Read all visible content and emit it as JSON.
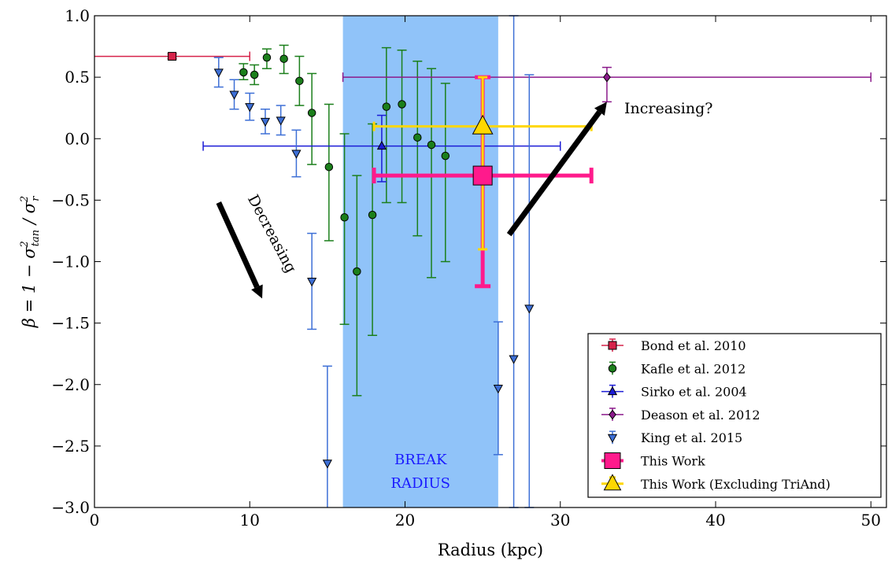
{
  "chart_data": {
    "type": "scatter",
    "xlabel": "Radius (kpc)",
    "ylabel_parts": [
      "β = 1 − σ",
      "2",
      "tan",
      " / σ",
      "2",
      "r"
    ],
    "xlim": [
      0,
      51
    ],
    "ylim": [
      -3.0,
      1.0
    ],
    "x_ticks": [
      0,
      10,
      20,
      30,
      40,
      50
    ],
    "y_ticks": [
      1.0,
      0.5,
      0.0,
      -0.5,
      -1.0,
      -1.5,
      -2.0,
      -2.5,
      -3.0
    ],
    "x_tick_labels": [
      "0",
      "10",
      "20",
      "30",
      "40",
      "50"
    ],
    "y_tick_labels": [
      "1.0",
      "0.5",
      "0.0",
      "−0.5",
      "−1.0",
      "−1.5",
      "−2.0",
      "−2.5",
      "−3.0"
    ],
    "grid": false,
    "legend_position": "bottom-right",
    "shaded_band": {
      "x0": 16,
      "x1": 26,
      "color": "#90c3f9",
      "label_lines": [
        "BREAK",
        "RADIUS"
      ]
    },
    "annotations": [
      {
        "text": "Decreasing",
        "arrow_from": [
          8,
          -0.52
        ],
        "arrow_to": [
          10.8,
          -1.3
        ]
      },
      {
        "text": "Increasing?",
        "arrow_from": [
          26.7,
          -0.78
        ],
        "arrow_to": [
          33,
          0.3
        ]
      }
    ],
    "series": [
      {
        "name": "Bond et al. 2010",
        "color": "#d6234a",
        "marker": "square",
        "size": 10,
        "points": [
          {
            "x": 5,
            "y": 0.67,
            "xerr": [
              5,
              5
            ],
            "yerr": [
              0.02,
              0.02
            ]
          }
        ]
      },
      {
        "name": "Kafle et al. 2012",
        "color": "#1b7f1b",
        "marker": "circle",
        "size": 10,
        "points": [
          {
            "x": 9.6,
            "y": 0.54,
            "yerr": [
              0.06,
              0.07
            ]
          },
          {
            "x": 10.3,
            "y": 0.52,
            "yerr": [
              0.08,
              0.08
            ]
          },
          {
            "x": 11.1,
            "y": 0.66,
            "yerr": [
              0.09,
              0.07
            ]
          },
          {
            "x": 12.2,
            "y": 0.65,
            "yerr": [
              0.12,
              0.11
            ]
          },
          {
            "x": 13.2,
            "y": 0.47,
            "yerr": [
              0.2,
              0.2
            ]
          },
          {
            "x": 14.0,
            "y": 0.21,
            "yerr": [
              0.42,
              0.32
            ]
          },
          {
            "x": 15.1,
            "y": -0.23,
            "yerr": [
              0.6,
              0.51
            ]
          },
          {
            "x": 16.1,
            "y": -0.64,
            "yerr": [
              0.87,
              0.68
            ]
          },
          {
            "x": 16.9,
            "y": -1.08,
            "yerr": [
              1.01,
              0.78
            ]
          },
          {
            "x": 17.9,
            "y": -0.62,
            "yerr": [
              0.98,
              0.74
            ]
          },
          {
            "x": 18.8,
            "y": 0.26,
            "yerr": [
              0.78,
              0.48
            ]
          },
          {
            "x": 19.8,
            "y": 0.28,
            "yerr": [
              0.8,
              0.44
            ]
          },
          {
            "x": 20.8,
            "y": 0.01,
            "yerr": [
              0.8,
              0.62
            ]
          },
          {
            "x": 21.7,
            "y": -0.05,
            "yerr": [
              1.08,
              0.62
            ]
          },
          {
            "x": 22.6,
            "y": -0.14,
            "yerr": [
              0.86,
              0.59
            ]
          }
        ]
      },
      {
        "name": "Sirko et al. 2004",
        "color": "#1c1cd6",
        "marker": "triangle-up",
        "size": 10,
        "points": [
          {
            "x": 18.5,
            "y": -0.06,
            "xerr": [
              11.5,
              11.5
            ],
            "yerr": [
              0.29,
              0.25
            ]
          }
        ]
      },
      {
        "name": "Deason et al. 2012",
        "color": "#8b1a8b",
        "marker": "diamond",
        "size": 10,
        "points": [
          {
            "x": 33,
            "y": 0.5,
            "xerr": [
              17,
              17
            ],
            "yerr": [
              0.2,
              0.08
            ]
          }
        ]
      },
      {
        "name": "King et al. 2015",
        "color": "#3d6fd6",
        "marker": "triangle-down",
        "size": 10,
        "points": [
          {
            "x": 8.0,
            "y": 0.54,
            "yerr": [
              0.12,
              0.12
            ]
          },
          {
            "x": 9.0,
            "y": 0.36,
            "yerr": [
              0.12,
              0.12
            ]
          },
          {
            "x": 10.0,
            "y": 0.26,
            "yerr": [
              0.11,
              0.11
            ]
          },
          {
            "x": 11.0,
            "y": 0.14,
            "yerr": [
              0.1,
              0.1
            ]
          },
          {
            "x": 12.0,
            "y": 0.15,
            "yerr": [
              0.12,
              0.12
            ]
          },
          {
            "x": 13.0,
            "y": -0.12,
            "yerr": [
              0.19,
              0.19
            ]
          },
          {
            "x": 14.0,
            "y": -1.16,
            "yerr": [
              0.39,
              0.39
            ]
          },
          {
            "x": 15.0,
            "y": -2.64,
            "yerr": [
              0.79,
              0.79
            ]
          },
          {
            "x": 26.0,
            "y": -2.03,
            "yerr": [
              0.54,
              0.54
            ]
          },
          {
            "x": 27.0,
            "y": -1.79,
            "yerr": [
              1.21,
              2.79
            ]
          },
          {
            "x": 28.0,
            "y": -1.38,
            "yerr": [
              1.62,
              1.9
            ]
          }
        ]
      },
      {
        "name": "This Work",
        "color": "#ff1a8c",
        "marker": "square",
        "size": 24,
        "thick": true,
        "points": [
          {
            "x": 25,
            "y": -0.3,
            "xerr": [
              7,
              7
            ],
            "yerr": [
              0.9,
              0.8
            ]
          }
        ]
      },
      {
        "name": "This Work (Excluding TriAnd)",
        "color": "#ffd700",
        "marker": "triangle-up",
        "size": 24,
        "points": [
          {
            "x": 25,
            "y": 0.1,
            "xerr": [
              7,
              7
            ],
            "yerr": [
              1.0,
              0.4
            ]
          }
        ]
      }
    ]
  }
}
